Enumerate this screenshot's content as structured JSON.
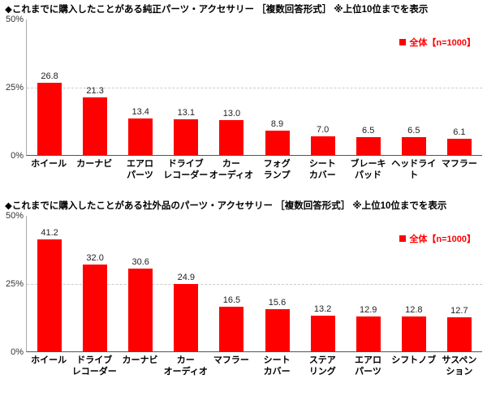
{
  "chart_data": [
    {
      "type": "bar",
      "title": "◆これまでに購入したことがある純正パーツ・アクセサリー ［複数回答形式］ ※上位10位までを表示",
      "legend": "全体【n=1000】",
      "categories": [
        "ホイール",
        "カーナビ",
        "エアロ\nパーツ",
        "ドライブ\nレコーダー",
        "カー\nオーディオ",
        "フォグ\nランプ",
        "シート\nカバー",
        "ブレーキ\nパッド",
        "ヘッドライト",
        "マフラー"
      ],
      "values": [
        26.8,
        21.3,
        13.4,
        13.1,
        13.0,
        8.9,
        7.0,
        6.5,
        6.5,
        6.1
      ],
      "ylim": [
        0,
        50
      ],
      "yticks": [
        "50%",
        "25%",
        "0%"
      ],
      "bar_color": "#ff0000",
      "grid": "dashed line at 25%",
      "legend_position": "top-right"
    },
    {
      "type": "bar",
      "title": "◆これまでに購入したことがある社外品のパーツ・アクセサリー ［複数回答形式］ ※上位10位までを表示",
      "legend": "全体【n=1000】",
      "categories": [
        "ホイール",
        "ドライブ\nレコーダー",
        "カーナビ",
        "カー\nオーディオ",
        "マフラー",
        "シート\nカバー",
        "ステア\nリング",
        "エアロ\nパーツ",
        "シフトノブ",
        "サスペン\nション"
      ],
      "values": [
        41.2,
        32.0,
        30.6,
        24.9,
        16.5,
        15.6,
        13.2,
        12.9,
        12.8,
        12.7
      ],
      "ylim": [
        0,
        50
      ],
      "yticks": [
        "50%",
        "25%",
        "0%"
      ],
      "bar_color": "#ff0000",
      "grid": "dashed line at 25%",
      "legend_position": "top-right"
    }
  ]
}
